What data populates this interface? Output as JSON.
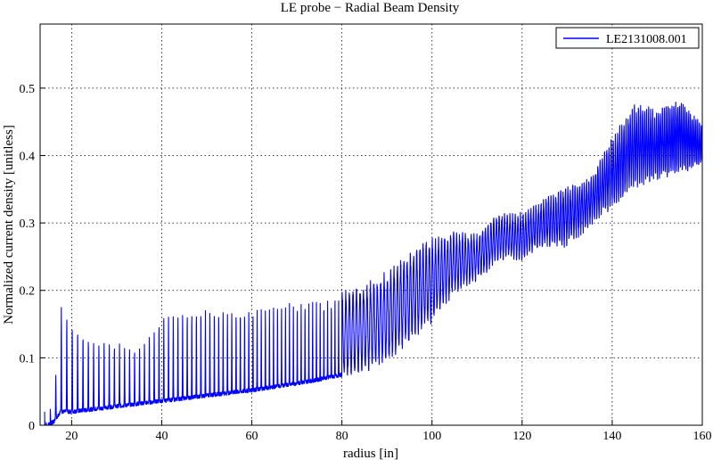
{
  "chart_data": {
    "type": "line",
    "title": "LE probe − Radial Beam Density",
    "xlabel": "radius [in]",
    "ylabel": "Normalized current density [unitless]",
    "xlim": [
      13,
      160
    ],
    "ylim": [
      0,
      0.595
    ],
    "xticks": [
      "20",
      "40",
      "60",
      "80",
      "100",
      "120",
      "140",
      "160"
    ],
    "yticks": [
      "0",
      "0.1",
      "0.2",
      "0.3",
      "0.4",
      "0.5"
    ],
    "grid": true,
    "legend_position": "top-right",
    "series": [
      {
        "name": "LE2131008.001",
        "color": "#0000ff",
        "x": [
          14,
          16,
          17.5,
          20,
          25,
          30,
          35,
          40,
          45,
          50,
          55,
          60,
          65,
          70,
          75,
          80,
          85,
          90,
          95,
          100,
          105,
          110,
          115,
          120,
          125,
          130,
          135,
          140,
          145,
          150,
          155,
          160
        ],
        "baseline": [
          0.0,
          0.005,
          0.02,
          0.02,
          0.024,
          0.028,
          0.032,
          0.036,
          0.04,
          0.044,
          0.048,
          0.052,
          0.057,
          0.062,
          0.068,
          0.075,
          0.085,
          0.1,
          0.13,
          0.16,
          0.2,
          0.22,
          0.25,
          0.25,
          0.27,
          0.27,
          0.3,
          0.33,
          0.36,
          0.37,
          0.38,
          0.39
        ],
        "peaks": [
          0.02,
          0.03,
          0.175,
          0.145,
          0.12,
          0.12,
          0.11,
          0.155,
          0.165,
          0.17,
          0.17,
          0.17,
          0.175,
          0.18,
          0.185,
          0.19,
          0.2,
          0.22,
          0.25,
          0.27,
          0.28,
          0.28,
          0.31,
          0.31,
          0.33,
          0.35,
          0.36,
          0.42,
          0.47,
          0.46,
          0.48,
          0.44
        ]
      }
    ]
  }
}
